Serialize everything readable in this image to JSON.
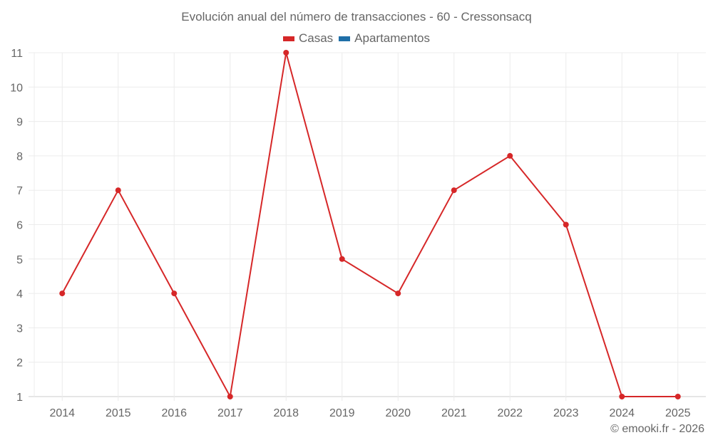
{
  "chart_data": {
    "type": "line",
    "title": "Evolución anual del número de transacciones - 60 - Cressonsacq",
    "xlabel": "",
    "ylabel": "",
    "categories": [
      "2014",
      "2015",
      "2016",
      "2017",
      "2018",
      "2019",
      "2020",
      "2021",
      "2022",
      "2023",
      "2024",
      "2025"
    ],
    "series": [
      {
        "name": "Casas",
        "color": "#d62728",
        "values": [
          4,
          7,
          4,
          1,
          11,
          5,
          4,
          7,
          8,
          6,
          1,
          1
        ]
      },
      {
        "name": "Apartamentos",
        "color": "#1f6fa8",
        "values": []
      }
    ],
    "yticks": [
      1,
      2,
      3,
      4,
      5,
      6,
      7,
      8,
      9,
      10,
      11
    ],
    "ylim": [
      1,
      11
    ],
    "grid": true,
    "legend_position": "top"
  },
  "title": "Evolución anual del número de transacciones - 60 - Cressonsacq",
  "legend": [
    {
      "label": "Casas",
      "color": "#d62728"
    },
    {
      "label": "Apartamentos",
      "color": "#1f6fa8"
    }
  ],
  "footer": "© emooki.fr - 2026"
}
